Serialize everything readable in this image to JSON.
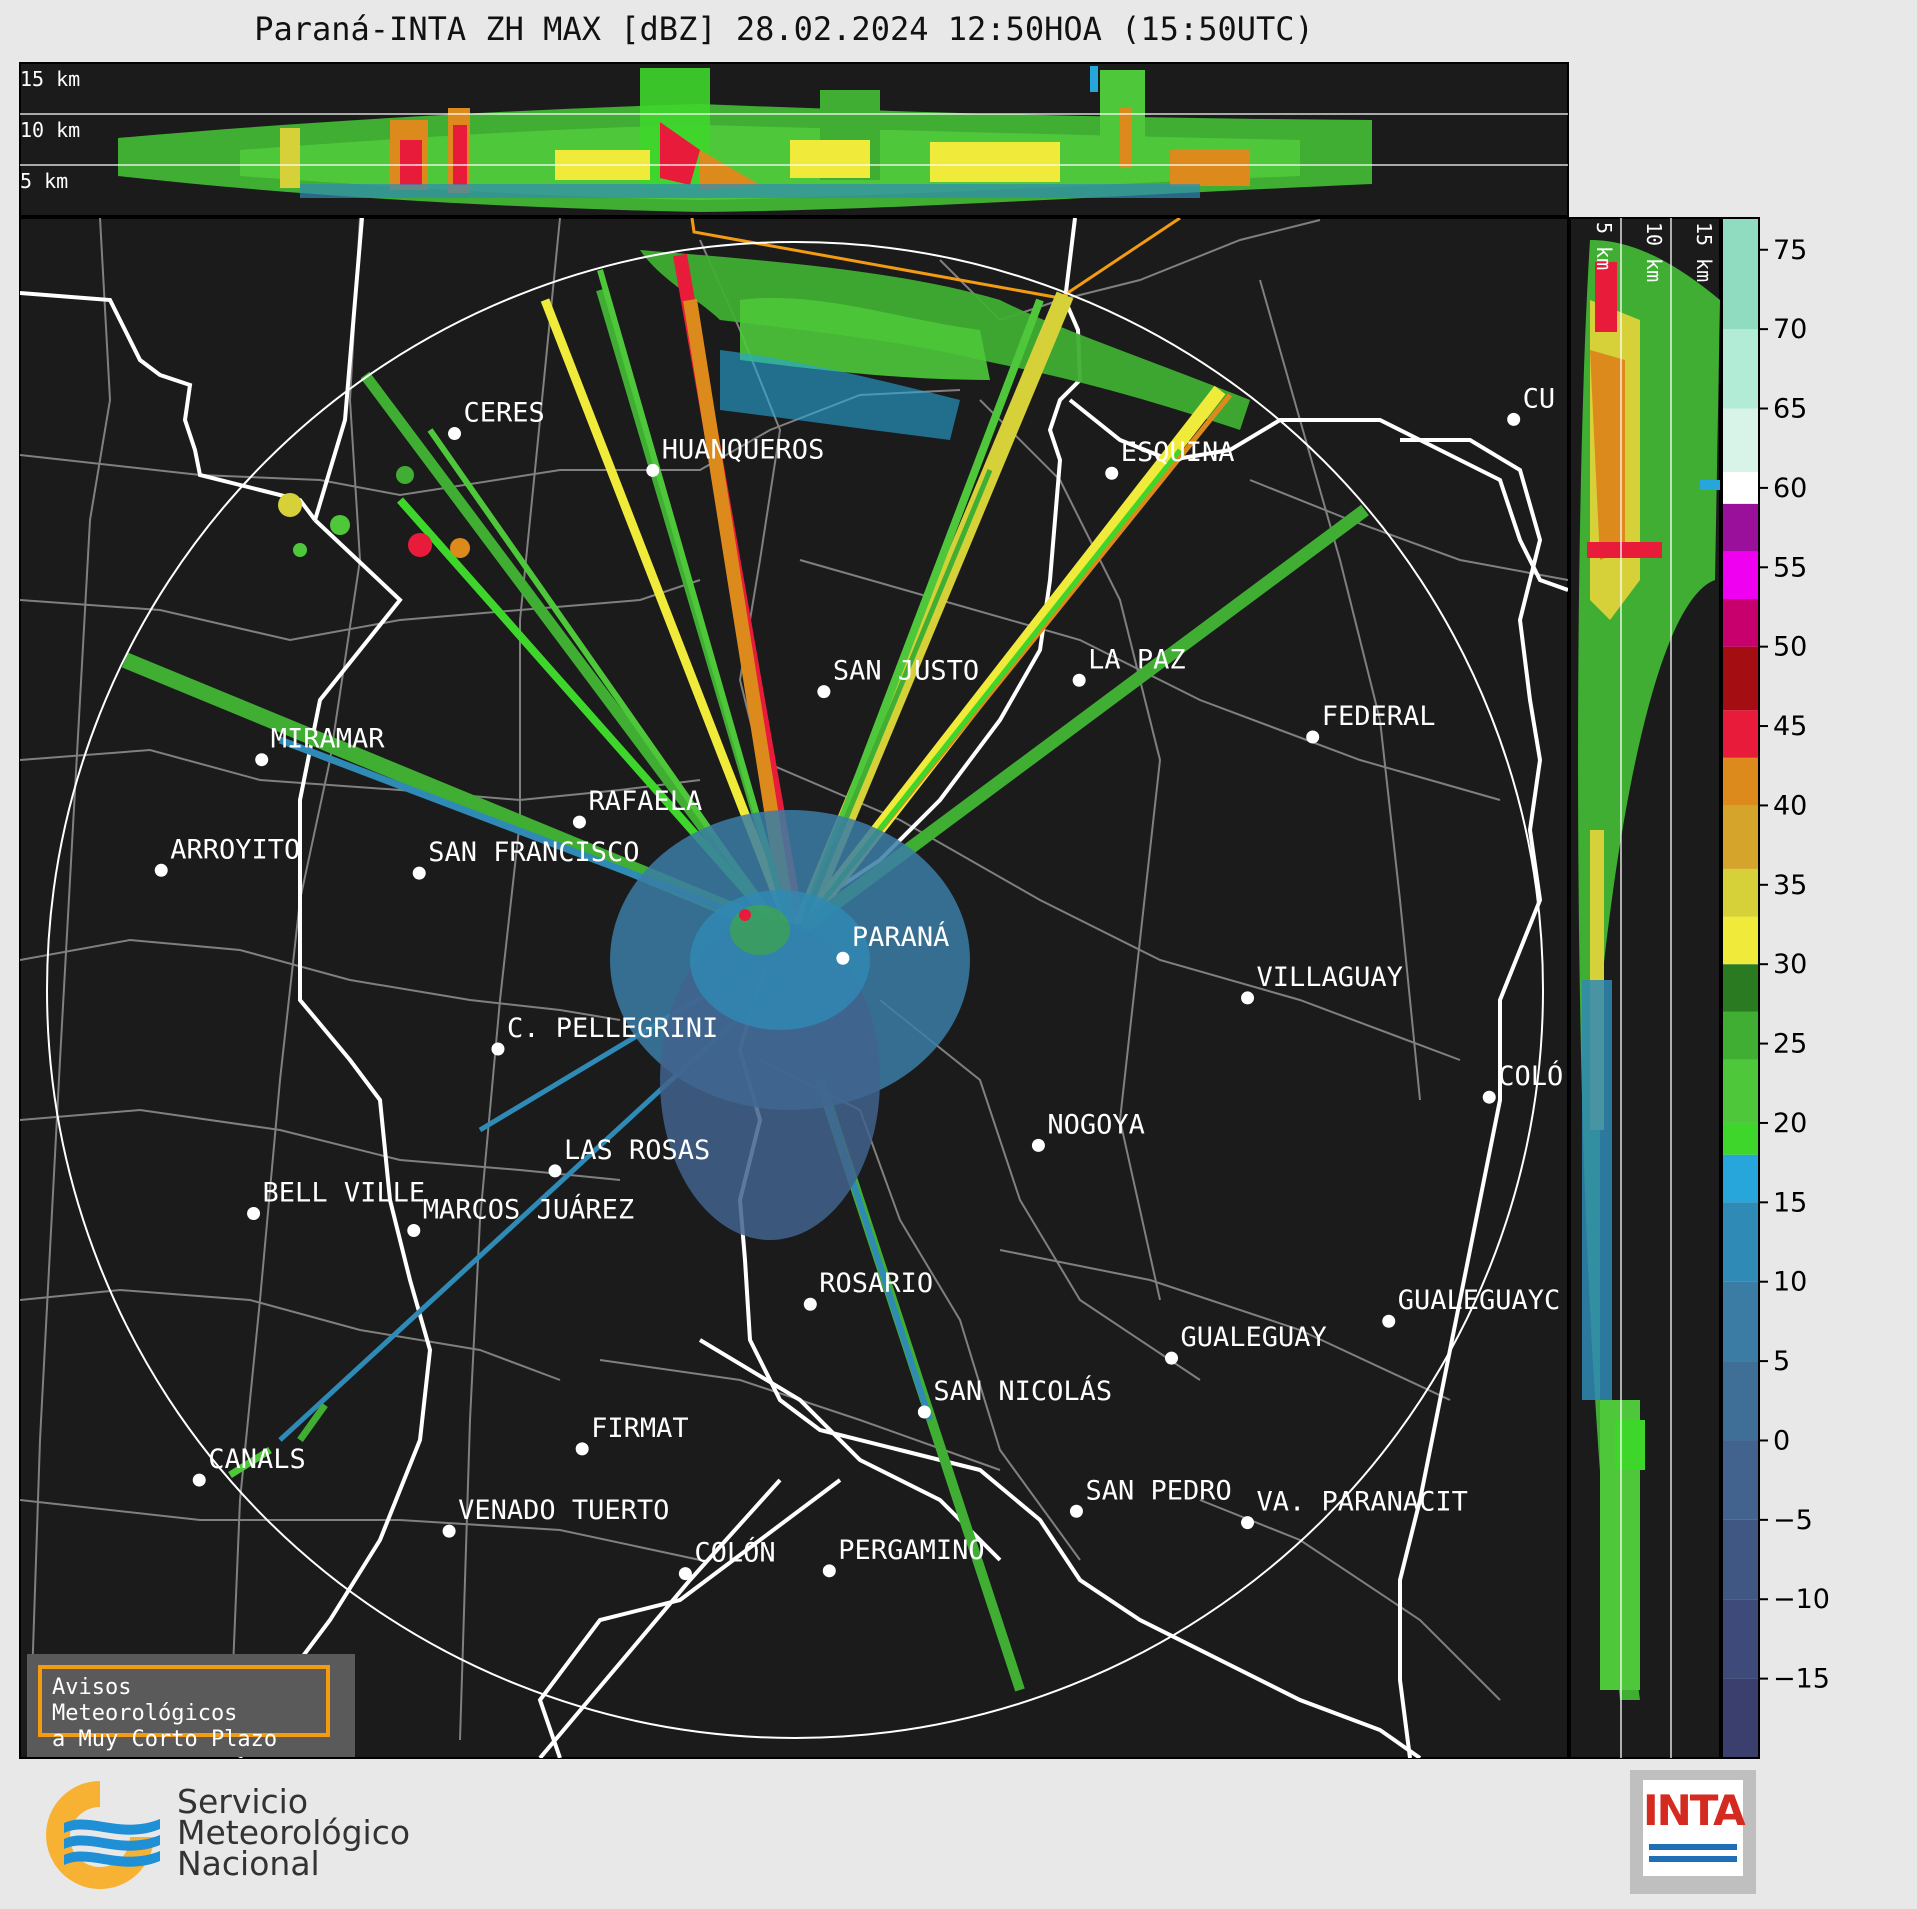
{
  "title": "Paraná-INTA ZH MAX [dBZ] 28.02.2024 12:50HOA (15:50UTC)",
  "top_panel": {
    "height_labels": [
      "15 km",
      "10 km",
      "5 km"
    ]
  },
  "side_panel": {
    "height_labels": [
      "5 km",
      "10 km",
      "15 km"
    ]
  },
  "colorbar": {
    "unit": "dBZ",
    "ticks": [
      75,
      70,
      65,
      60,
      55,
      50,
      45,
      40,
      35,
      30,
      25,
      20,
      15,
      10,
      5,
      0,
      -5,
      -10,
      -15
    ],
    "tick_labels": [
      "75",
      "70",
      "65",
      "60",
      "55",
      "50",
      "45",
      "40",
      "35",
      "30",
      "25",
      "20",
      "15",
      "10",
      "5",
      "0",
      "−5",
      "−10",
      "−15"
    ],
    "range": [
      -20,
      77
    ],
    "bands": [
      {
        "from": -20,
        "to": -15,
        "color": "#3b3f6e"
      },
      {
        "from": -15,
        "to": -10,
        "color": "#3d4a7a"
      },
      {
        "from": -10,
        "to": -5,
        "color": "#405783"
      },
      {
        "from": -5,
        "to": 0,
        "color": "#41638d"
      },
      {
        "from": 0,
        "to": 5,
        "color": "#3f6f97"
      },
      {
        "from": 5,
        "to": 10,
        "color": "#3a7ca4"
      },
      {
        "from": 10,
        "to": 15,
        "color": "#2f8ab5"
      },
      {
        "from": 15,
        "to": 18,
        "color": "#26a6da"
      },
      {
        "from": 18,
        "to": 20,
        "color": "#3fd62c"
      },
      {
        "from": 20,
        "to": 24,
        "color": "#4ec83a"
      },
      {
        "from": 24,
        "to": 27,
        "color": "#3fae33"
      },
      {
        "from": 27,
        "to": 30,
        "color": "#2a7a22"
      },
      {
        "from": 30,
        "to": 33,
        "color": "#f0ea3a"
      },
      {
        "from": 33,
        "to": 36,
        "color": "#d6d039"
      },
      {
        "from": 36,
        "to": 40,
        "color": "#d4a52a"
      },
      {
        "from": 40,
        "to": 43,
        "color": "#dd8a1c"
      },
      {
        "from": 43,
        "to": 46,
        "color": "#e81c3a"
      },
      {
        "from": 46,
        "to": 50,
        "color": "#a40d12"
      },
      {
        "from": 50,
        "to": 53,
        "color": "#c8006e"
      },
      {
        "from": 53,
        "to": 56,
        "color": "#f000f0"
      },
      {
        "from": 56,
        "to": 59,
        "color": "#9a109a"
      },
      {
        "from": 59,
        "to": 61,
        "color": "#ffffff"
      },
      {
        "from": 61,
        "to": 65,
        "color": "#d8f4e8"
      },
      {
        "from": 65,
        "to": 70,
        "color": "#b3ecd6"
      },
      {
        "from": 70,
        "to": 77,
        "color": "#8fdcc0"
      }
    ]
  },
  "cities": [
    {
      "name": "CERES",
      "lon": -61.95,
      "lat": -29.88
    },
    {
      "name": "HUANQUEROS",
      "lon": -61.22,
      "lat": -30.01
    },
    {
      "name": "ESQUINA",
      "lon": -59.53,
      "lat": -30.02
    },
    {
      "name": "CU",
      "lon": -58.05,
      "lat": -29.83
    },
    {
      "name": "MIRAMAR",
      "lon": -62.66,
      "lat": -31.03
    },
    {
      "name": "SAN JUSTO",
      "lon": -60.59,
      "lat": -30.79
    },
    {
      "name": "LA PAZ",
      "lon": -59.65,
      "lat": -30.75
    },
    {
      "name": "FEDERAL",
      "lon": -58.79,
      "lat": -30.95
    },
    {
      "name": "RAFAELA",
      "lon": -61.49,
      "lat": -31.25
    },
    {
      "name": "ARROYITO",
      "lon": -63.03,
      "lat": -31.42
    },
    {
      "name": "SAN FRANCISCO",
      "lon": -62.08,
      "lat": -31.43
    },
    {
      "name": "PARANÁ",
      "lon": -60.52,
      "lat": -31.73
    },
    {
      "name": "VILLAGUAY",
      "lon": -59.03,
      "lat": -31.87
    },
    {
      "name": "C. PELLEGRINI",
      "lon": -61.79,
      "lat": -32.05
    },
    {
      "name": "COLÓ",
      "lon": -58.14,
      "lat": -32.22
    },
    {
      "name": "NOGOYA",
      "lon": -59.8,
      "lat": -32.39
    },
    {
      "name": "LAS ROSAS",
      "lon": -61.58,
      "lat": -32.48
    },
    {
      "name": "BELL VILLE",
      "lon": -62.69,
      "lat": -32.63
    },
    {
      "name": "MARCOS JUÁREZ",
      "lon": -62.1,
      "lat": -32.69
    },
    {
      "name": "ROSARIO",
      "lon": -60.64,
      "lat": -32.95
    },
    {
      "name": "GUALEGUAYC",
      "lon": -58.51,
      "lat": -33.01
    },
    {
      "name": "GUALEGUAY",
      "lon": -59.31,
      "lat": -33.14
    },
    {
      "name": "SAN NICOLÁS",
      "lon": -60.22,
      "lat": -33.33
    },
    {
      "name": "FIRMAT",
      "lon": -61.48,
      "lat": -33.46
    },
    {
      "name": "CANALS",
      "lon": -62.89,
      "lat": -33.57
    },
    {
      "name": "SAN PEDRO",
      "lon": -59.66,
      "lat": -33.68
    },
    {
      "name": "VA. PARANACIT",
      "lon": -59.03,
      "lat": -33.72
    },
    {
      "name": "VENADO TUERTO",
      "lon": -61.97,
      "lat": -33.75
    },
    {
      "name": "COLÓN",
      "lon": -61.1,
      "lat": -33.9
    },
    {
      "name": "PERGAMINO",
      "lon": -60.57,
      "lat": -33.89
    }
  ],
  "notice": {
    "line1": "Avisos Meteorológicos",
    "line2": "a Muy Corto Plazo"
  },
  "logos": {
    "smn": [
      "Servicio",
      "Meteorológico",
      "Nacional"
    ],
    "inta": "INTA"
  },
  "colors": {
    "map_background": "#1b1b1b",
    "range_ring": "#ffffff",
    "province_border": "#ffffff",
    "department_border": "#808080",
    "warning_border": "#f39c12"
  }
}
